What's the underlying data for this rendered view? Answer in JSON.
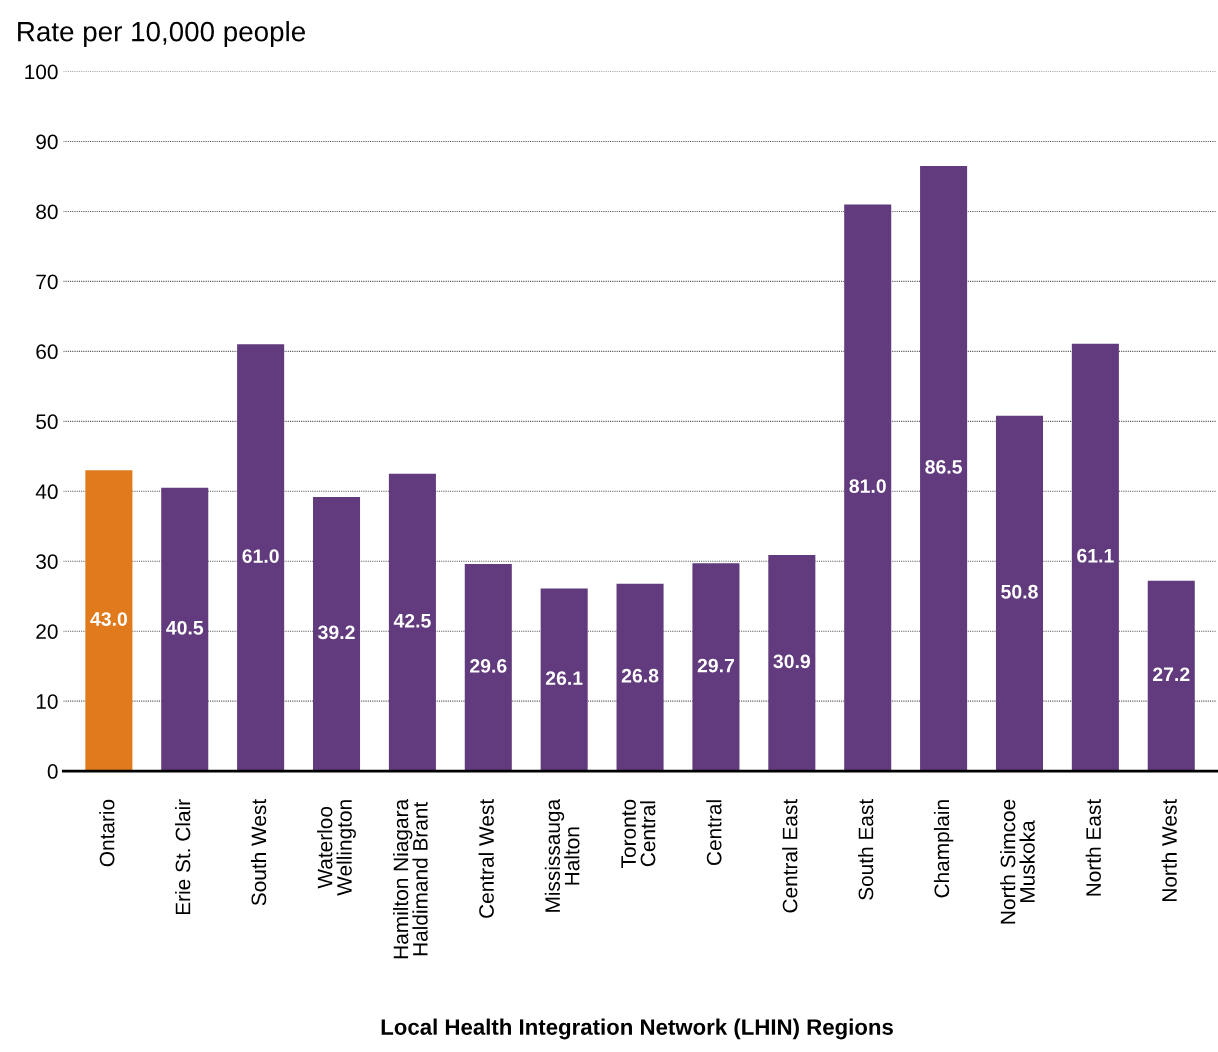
{
  "chart_data": {
    "type": "bar",
    "ylabel": "Rate per 10,000 people",
    "xlabel": "Local Health Integration Network (LHIN) Regions",
    "categories": [
      "Ontario",
      "Erie St. Clair",
      "South West",
      "Waterloo\nWellington",
      "Hamilton Niagara\nHaldimand Brant",
      "Central West",
      "Mississauga\nHalton",
      "Toronto\nCentral",
      "Central",
      "Central East",
      "South East",
      "Champlain",
      "North Simcoe\nMuskoka",
      "North East",
      "North West"
    ],
    "values": [
      43.0,
      40.5,
      61.0,
      39.2,
      42.5,
      29.6,
      26.1,
      26.8,
      29.7,
      30.9,
      81.0,
      86.5,
      50.8,
      61.1,
      27.2
    ],
    "colors": [
      "#e07a1c",
      "#623b7e",
      "#623b7e",
      "#623b7e",
      "#623b7e",
      "#623b7e",
      "#623b7e",
      "#623b7e",
      "#623b7e",
      "#623b7e",
      "#623b7e",
      "#623b7e",
      "#623b7e",
      "#623b7e",
      "#623b7e"
    ],
    "ylim": [
      0,
      100
    ],
    "yticks": [
      0,
      10,
      20,
      30,
      40,
      50,
      60,
      70,
      80,
      90,
      100
    ],
    "value_labels": [
      "43.0",
      "40.5",
      "61.0",
      "39.2",
      "42.5",
      "29.6",
      "26.1",
      "26.8",
      "29.7",
      "30.9",
      "81.0",
      "86.5",
      "50.8",
      "61.1",
      "27.2"
    ],
    "grid": "y"
  }
}
